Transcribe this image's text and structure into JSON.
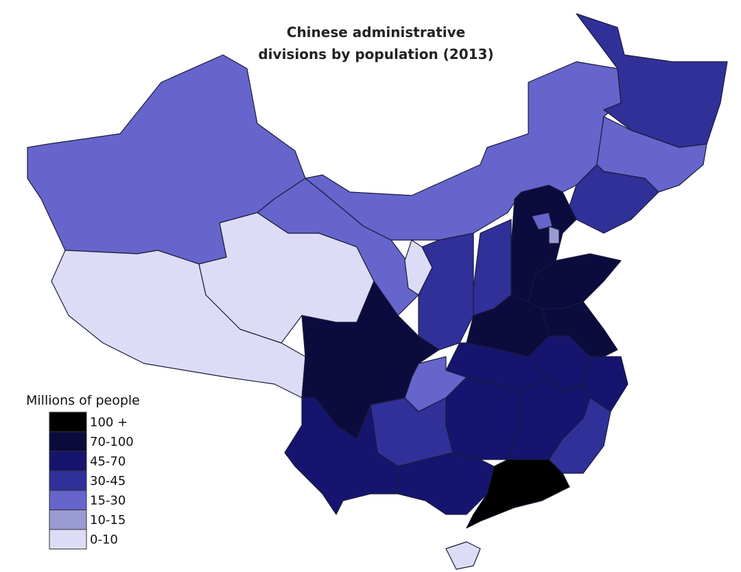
{
  "title": {
    "line1": "Chinese administrative",
    "line2": "divisions by population (2013)"
  },
  "legend": {
    "title": "Millions of people",
    "items": [
      {
        "label": "100 +",
        "color": "#000000"
      },
      {
        "label": "70-100",
        "color": "#0b0b3e"
      },
      {
        "label": "45-70",
        "color": "#15156f"
      },
      {
        "label": "30-45",
        "color": "#303099"
      },
      {
        "label": "15-30",
        "color": "#6565cc"
      },
      {
        "label": "10-15",
        "color": "#9b9bd4"
      },
      {
        "label": "0-10",
        "color": "#dcdcf6"
      }
    ]
  }
}
